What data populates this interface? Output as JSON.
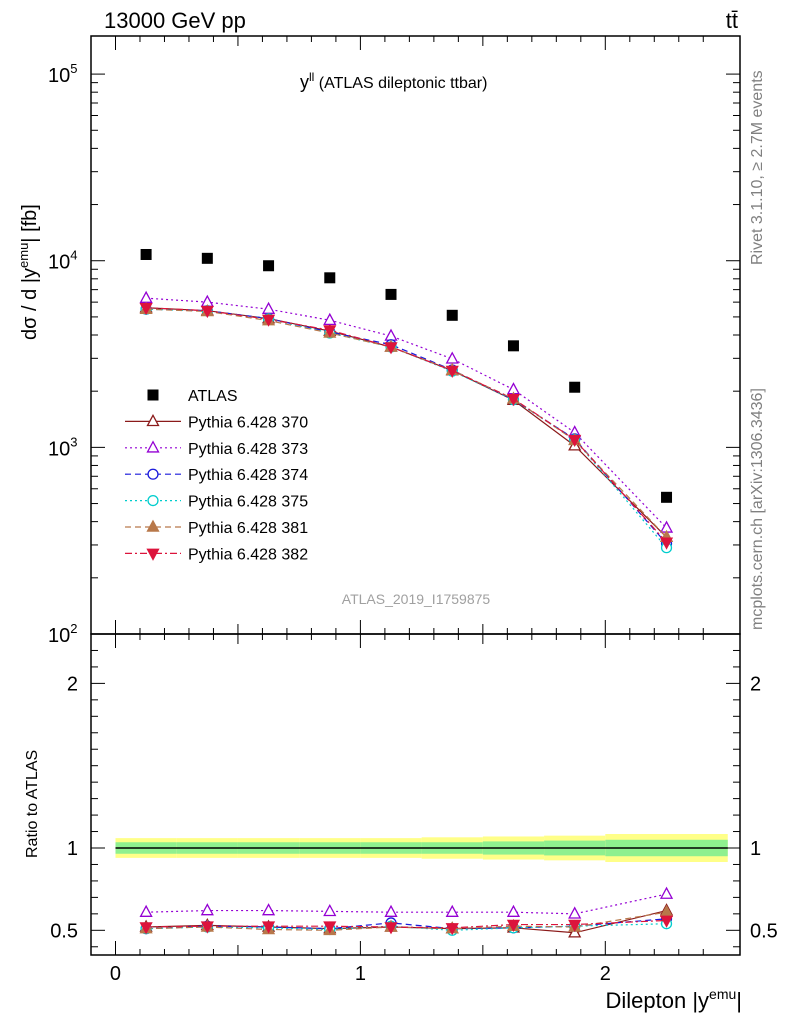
{
  "header": {
    "energy_label": "13000 GeV pp",
    "process_label": "tt̄"
  },
  "side_labels": {
    "rivet": "Rivet 3.1.10, ≥ 2.7M events",
    "mcplots": "mcplots.cern.ch [arXiv:1306.3436]"
  },
  "chart_data": [
    {
      "type": "scatter",
      "title": "y^ll (ATLAS dileptonic ttbar)",
      "title_main": "y",
      "title_sup": "ll",
      "title_rest": " (ATLAS dileptonic ttbar)",
      "ylabel": "dσ / d |y^emu| [fb]",
      "ylabel_parts": {
        "pre": "dσ / d |y",
        "sup": "emu",
        "post": "| [fb]"
      },
      "yscale": "log",
      "ylim": [
        100,
        160000
      ],
      "xlim": [
        -0.1,
        2.55
      ],
      "analysis_tag": "ATLAS_2019_I1759875",
      "ytick_labels": [
        {
          "base": "10",
          "exp": "2",
          "value": 100
        },
        {
          "base": "10",
          "exp": "3",
          "value": 1000
        },
        {
          "base": "10",
          "exp": "4",
          "value": 10000
        },
        {
          "base": "10",
          "exp": "5",
          "value": 100000
        }
      ],
      "x": [
        0.125,
        0.375,
        0.625,
        0.875,
        1.125,
        1.375,
        1.625,
        1.875,
        2.25
      ],
      "series": [
        {
          "name": "ATLAS",
          "color": "#000000",
          "marker": "square",
          "line": "none",
          "values": [
            10800,
            10300,
            9400,
            8100,
            6600,
            5100,
            3500,
            2100,
            540
          ]
        },
        {
          "name": "Pythia 6.428 370",
          "color": "#8b1a1a",
          "marker": "triangle-up-open",
          "line": "solid",
          "values": [
            5600,
            5400,
            4900,
            4200,
            3450,
            2580,
            1790,
            1020,
            330
          ]
        },
        {
          "name": "Pythia 6.428 373",
          "color": "#9400d3",
          "marker": "triangle-up-open",
          "line": "dotted",
          "values": [
            6300,
            6000,
            5500,
            4800,
            3950,
            2980,
            2040,
            1200,
            370
          ]
        },
        {
          "name": "Pythia 6.428 374",
          "color": "#1a1adb",
          "marker": "circle-open",
          "line": "dashed",
          "values": [
            5500,
            5400,
            4900,
            4150,
            3550,
            2600,
            1800,
            1110,
            305
          ]
        },
        {
          "name": "Pythia 6.428 375",
          "color": "#00cdcd",
          "marker": "circle-open",
          "line": "dotted",
          "values": [
            5500,
            5380,
            4880,
            4100,
            3450,
            2560,
            1800,
            1100,
            290
          ]
        },
        {
          "name": "Pythia 6.428 381",
          "color": "#b8784a",
          "marker": "triangle-up-filled",
          "line": "dashed",
          "values": [
            5500,
            5350,
            4780,
            4100,
            3450,
            2590,
            1820,
            1090,
            330
          ]
        },
        {
          "name": "Pythia 6.428 382",
          "color": "#dc143c",
          "marker": "triangle-down-filled",
          "line": "dashdot",
          "values": [
            5600,
            5400,
            4850,
            4250,
            3450,
            2580,
            1820,
            1100,
            310
          ]
        }
      ]
    },
    {
      "type": "scatter",
      "ylabel": "Ratio to ATLAS",
      "xlabel": "Dilepton |y^emu|",
      "xlabel_parts": {
        "pre": "Dilepton |y",
        "sup": "emu",
        "post": "|"
      },
      "ylim": [
        0.35,
        2.3
      ],
      "xlim": [
        -0.1,
        2.55
      ],
      "yticks": [
        0.5,
        1,
        2
      ],
      "ytick_labels": [
        "0.5",
        "1",
        "2"
      ],
      "xticks": [
        0,
        1,
        2
      ],
      "xtick_labels": [
        "0",
        "1",
        "2"
      ],
      "bin_edges": [
        0,
        0.25,
        0.5,
        0.75,
        1.0,
        1.25,
        1.5,
        1.75,
        2.0,
        2.5
      ],
      "band_inner": [
        0.035,
        0.035,
        0.035,
        0.035,
        0.035,
        0.035,
        0.04,
        0.045,
        0.05
      ],
      "band_outer": [
        0.06,
        0.06,
        0.06,
        0.06,
        0.06,
        0.065,
        0.07,
        0.075,
        0.085
      ],
      "band_colors": {
        "inner": "#8ff08f",
        "outer": "#ffff88"
      },
      "x": [
        0.125,
        0.375,
        0.625,
        0.875,
        1.125,
        1.375,
        1.625,
        1.875,
        2.25
      ],
      "series": [
        {
          "name": "Pythia 6.428 370",
          "values": [
            0.52,
            0.53,
            0.52,
            0.51,
            0.52,
            0.51,
            0.515,
            0.485,
            0.62
          ]
        },
        {
          "name": "Pythia 6.428 373",
          "values": [
            0.61,
            0.62,
            0.62,
            0.615,
            0.61,
            0.61,
            0.61,
            0.6,
            0.72
          ]
        },
        {
          "name": "Pythia 6.428 374",
          "values": [
            0.51,
            0.525,
            0.52,
            0.51,
            0.545,
            0.51,
            0.515,
            0.525,
            0.57
          ]
        },
        {
          "name": "Pythia 6.428 375",
          "values": [
            0.51,
            0.52,
            0.515,
            0.505,
            0.525,
            0.5,
            0.515,
            0.525,
            0.54
          ]
        },
        {
          "name": "Pythia 6.428 381",
          "values": [
            0.51,
            0.52,
            0.505,
            0.5,
            0.52,
            0.51,
            0.525,
            0.52,
            0.61
          ]
        },
        {
          "name": "Pythia 6.428 382",
          "values": [
            0.52,
            0.525,
            0.525,
            0.525,
            0.52,
            0.515,
            0.535,
            0.535,
            0.56
          ]
        }
      ]
    }
  ]
}
